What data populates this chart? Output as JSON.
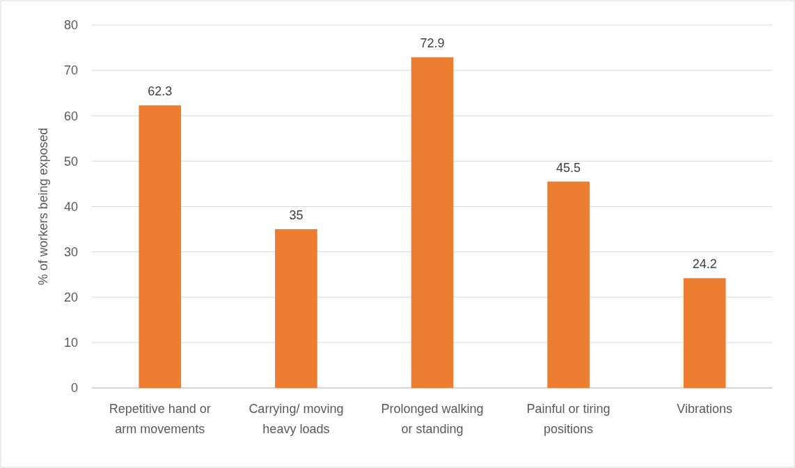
{
  "chart_data": {
    "type": "bar",
    "ylabel": "% of workers being exposed",
    "categories": [
      "Repetitive hand or arm movements",
      "Carrying/ moving heavy loads",
      "Prolonged walking or standing",
      "Painful or tiring positions",
      "Vibrations"
    ],
    "values": [
      62.3,
      35,
      72.9,
      45.5,
      24.2
    ],
    "color": "#ed7d31",
    "ylim": [
      0,
      80
    ],
    "yticks": [
      0,
      10,
      20,
      30,
      40,
      50,
      60,
      70,
      80
    ],
    "grid": "y",
    "data_labels": true
  }
}
